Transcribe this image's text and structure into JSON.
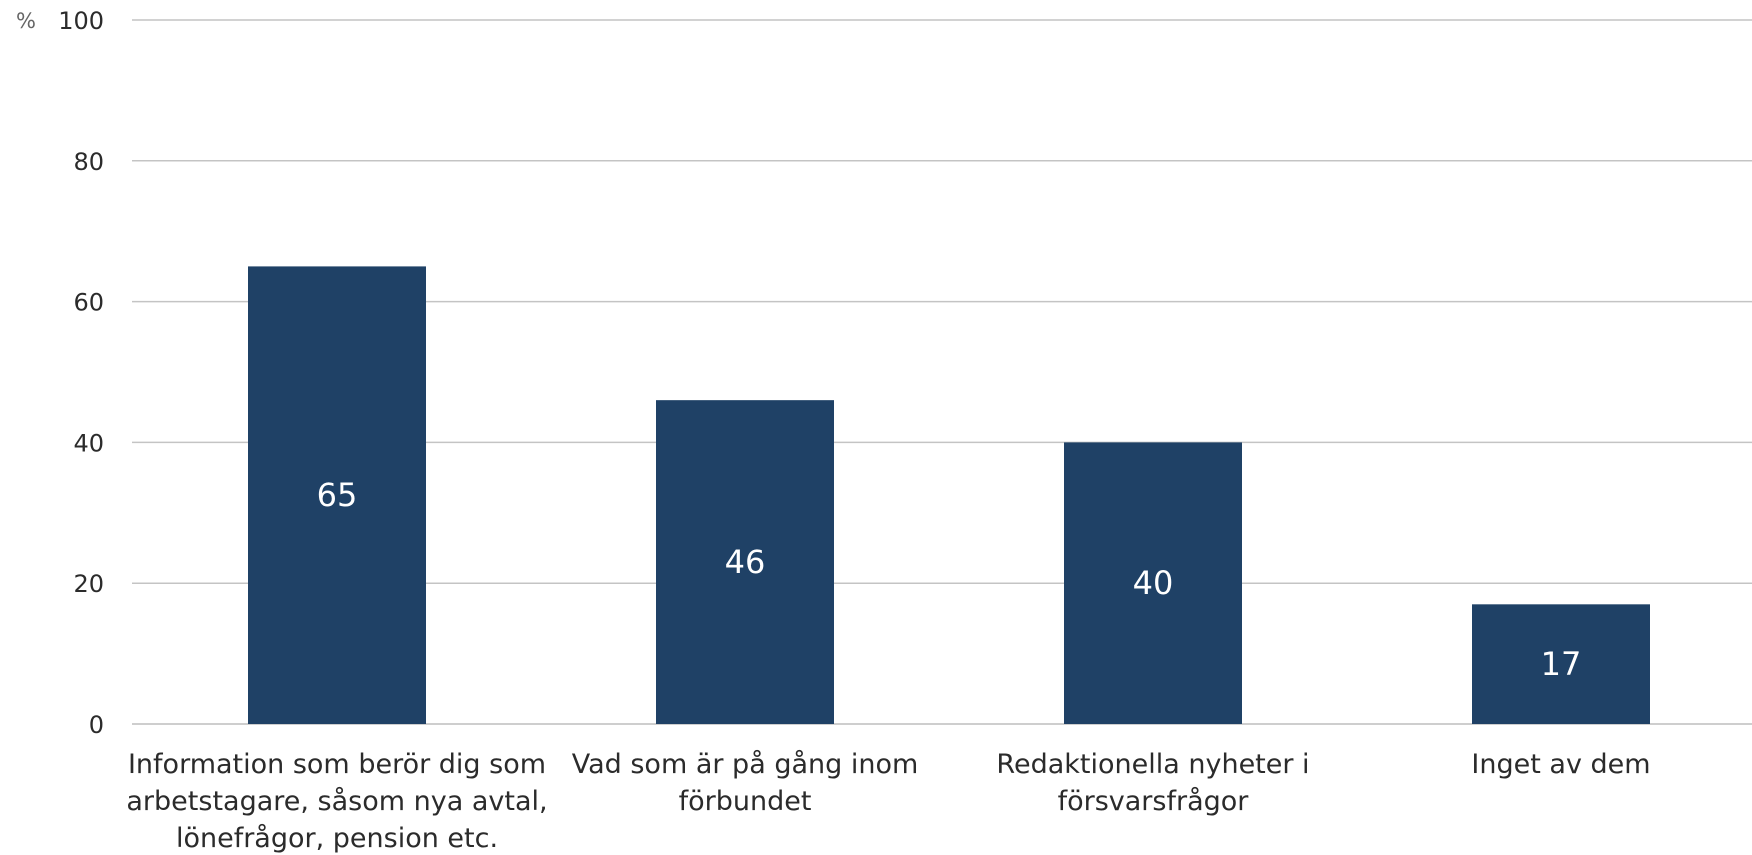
{
  "chart_data": {
    "type": "bar",
    "ylabel": "%",
    "ylim": [
      0,
      100
    ],
    "yticks": [
      0,
      20,
      40,
      60,
      80,
      100
    ],
    "grid": true,
    "bar_color": "#1f4166",
    "categories": [
      [
        "Information som berör dig som",
        "arbetstagare, såsom nya avtal,",
        "lönefrågor, pension etc."
      ],
      [
        "Vad som är på gång inom",
        "förbundet"
      ],
      [
        "Redaktionella nyheter i",
        "försvarsfrågor"
      ],
      [
        "Inget av dem"
      ]
    ],
    "values": [
      65,
      46,
      40,
      17
    ]
  }
}
